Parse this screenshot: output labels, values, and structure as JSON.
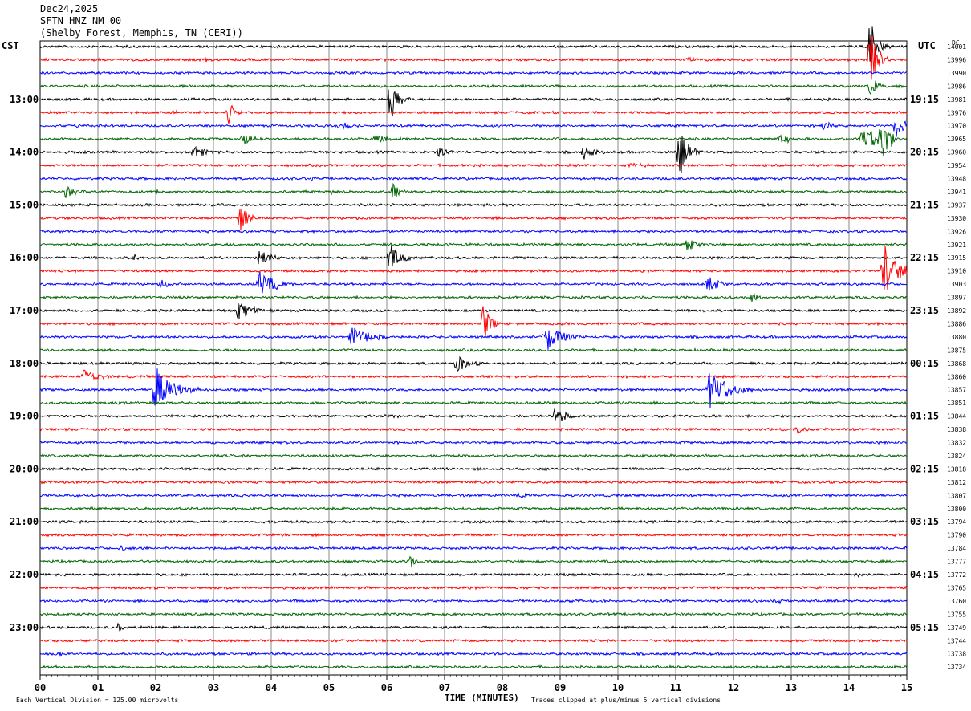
{
  "header": {
    "date": "Dec24,2025",
    "station": "SFTN HNZ NM 00",
    "location": "(Shelby Forest, Memphis, TN (CERI))"
  },
  "left_zone_label": "CST",
  "right_zone_label": "UTC",
  "count_header": "DC",
  "chart_data": {
    "type": "line",
    "title": "SFTN HNZ NM 00",
    "xlabel": "TIME (MINUTES)",
    "xlim": [
      0,
      15
    ],
    "x_ticks": [
      "00",
      "01",
      "02",
      "03",
      "04",
      "05",
      "06",
      "07",
      "08",
      "09",
      "10",
      "11",
      "12",
      "13",
      "14",
      "15"
    ],
    "trace_colors": [
      "#000000",
      "#ff0000",
      "#0000ff",
      "#006400"
    ],
    "traces_per_hour": 4,
    "trace_count": 48,
    "left_hour_labels": [
      "13:00",
      "14:00",
      "15:00",
      "16:00",
      "17:00",
      "18:00",
      "19:00",
      "20:00",
      "21:00",
      "22:00",
      "23:00"
    ],
    "right_hour_labels": [
      "19:15",
      "20:15",
      "21:15",
      "22:15",
      "23:15",
      "00:15",
      "01:15",
      "02:15",
      "03:15",
      "04:15",
      "05:15"
    ],
    "first_labeled_trace": 4,
    "dc_offsets": [
      "14001",
      "13996",
      "13990",
      "13986",
      "13981",
      "13976",
      "13970",
      "13965",
      "13960",
      "13954",
      "13948",
      "13941",
      "13937",
      "13930",
      "13926",
      "13921",
      "13915",
      "13910",
      "13903",
      "13897",
      "13892",
      "13886",
      "13880",
      "13875",
      "13868",
      "13860",
      "13857",
      "13851",
      "13844",
      "13838",
      "13832",
      "13824",
      "13818",
      "13812",
      "13807",
      "13800",
      "13794",
      "13790",
      "13784",
      "13777",
      "13772",
      "13765",
      "13760",
      "13755",
      "13749",
      "13744",
      "13738",
      "13734"
    ],
    "events": [
      {
        "trace": 0,
        "minute": 14.35,
        "amp": 40,
        "dur": 0.12
      },
      {
        "trace": 1,
        "minute": 2.85,
        "amp": 4,
        "dur": 0.1
      },
      {
        "trace": 1,
        "minute": 11.2,
        "amp": 6,
        "dur": 0.08
      },
      {
        "trace": 1,
        "minute": 14.35,
        "amp": 48,
        "dur": 0.12
      },
      {
        "trace": 3,
        "minute": 14.35,
        "amp": 12,
        "dur": 0.15
      },
      {
        "trace": 4,
        "minute": 6.05,
        "amp": 36,
        "dur": 0.12
      },
      {
        "trace": 5,
        "minute": 2.3,
        "amp": 3,
        "dur": 0.08
      },
      {
        "trace": 5,
        "minute": 3.25,
        "amp": 16,
        "dur": 0.1
      },
      {
        "trace": 6,
        "minute": 0.6,
        "amp": 3,
        "dur": 0.1
      },
      {
        "trace": 6,
        "minute": 5.2,
        "amp": 4,
        "dur": 0.2
      },
      {
        "trace": 6,
        "minute": 13.55,
        "amp": 8,
        "dur": 0.12
      },
      {
        "trace": 6,
        "minute": 14.8,
        "amp": 14,
        "dur": 0.25
      },
      {
        "trace": 7,
        "minute": 3.5,
        "amp": 8,
        "dur": 0.15
      },
      {
        "trace": 7,
        "minute": 5.8,
        "amp": 8,
        "dur": 0.15
      },
      {
        "trace": 7,
        "minute": 12.8,
        "amp": 6,
        "dur": 0.2
      },
      {
        "trace": 7,
        "minute": 14.25,
        "amp": 14,
        "dur": 0.35
      },
      {
        "trace": 7,
        "minute": 14.55,
        "amp": 30,
        "dur": 0.15
      },
      {
        "trace": 8,
        "minute": 2.65,
        "amp": 9,
        "dur": 0.2
      },
      {
        "trace": 8,
        "minute": 6.9,
        "amp": 7,
        "dur": 0.15
      },
      {
        "trace": 8,
        "minute": 9.4,
        "amp": 12,
        "dur": 0.15
      },
      {
        "trace": 8,
        "minute": 11.05,
        "amp": 40,
        "dur": 0.12
      },
      {
        "trace": 9,
        "minute": 10.2,
        "amp": 3,
        "dur": 0.3
      },
      {
        "trace": 10,
        "minute": 4.7,
        "amp": 6,
        "dur": 0.06
      },
      {
        "trace": 11,
        "minute": 0.45,
        "amp": 9,
        "dur": 0.18
      },
      {
        "trace": 11,
        "minute": 2.0,
        "amp": 4,
        "dur": 0.1
      },
      {
        "trace": 11,
        "minute": 5.05,
        "amp": 4,
        "dur": 0.1
      },
      {
        "trace": 11,
        "minute": 6.1,
        "amp": 12,
        "dur": 0.1
      },
      {
        "trace": 13,
        "minute": 3.45,
        "amp": 18,
        "dur": 0.15
      },
      {
        "trace": 15,
        "minute": 11.2,
        "amp": 14,
        "dur": 0.12
      },
      {
        "trace": 16,
        "minute": 1.6,
        "amp": 7,
        "dur": 0.08
      },
      {
        "trace": 16,
        "minute": 3.8,
        "amp": 14,
        "dur": 0.15
      },
      {
        "trace": 16,
        "minute": 6.05,
        "amp": 22,
        "dur": 0.15
      },
      {
        "trace": 17,
        "minute": 14.6,
        "amp": 36,
        "dur": 0.2
      },
      {
        "trace": 18,
        "minute": 2.1,
        "amp": 8,
        "dur": 0.12
      },
      {
        "trace": 18,
        "minute": 3.8,
        "amp": 20,
        "dur": 0.2
      },
      {
        "trace": 18,
        "minute": 4.1,
        "amp": 4,
        "dur": 0.1
      },
      {
        "trace": 18,
        "minute": 11.55,
        "amp": 10,
        "dur": 0.2
      },
      {
        "trace": 19,
        "minute": 12.3,
        "amp": 8,
        "dur": 0.1
      },
      {
        "trace": 20,
        "minute": 3.4,
        "amp": 16,
        "dur": 0.2
      },
      {
        "trace": 21,
        "minute": 7.65,
        "amp": 36,
        "dur": 0.1
      },
      {
        "trace": 22,
        "minute": 5.4,
        "amp": 14,
        "dur": 0.25
      },
      {
        "trace": 22,
        "minute": 8.75,
        "amp": 20,
        "dur": 0.25
      },
      {
        "trace": 24,
        "minute": 7.2,
        "amp": 12,
        "dur": 0.2
      },
      {
        "trace": 25,
        "minute": 0.75,
        "amp": 10,
        "dur": 0.2
      },
      {
        "trace": 26,
        "minute": 2.0,
        "amp": 34,
        "dur": 0.25
      },
      {
        "trace": 26,
        "minute": 11.6,
        "amp": 24,
        "dur": 0.3
      },
      {
        "trace": 28,
        "minute": 5.95,
        "amp": 3,
        "dur": 0.1
      },
      {
        "trace": 28,
        "minute": 8.9,
        "amp": 12,
        "dur": 0.15
      },
      {
        "trace": 29,
        "minute": 13.1,
        "amp": 5,
        "dur": 0.15
      },
      {
        "trace": 33,
        "minute": 7.65,
        "amp": 3,
        "dur": 0.1
      },
      {
        "trace": 34,
        "minute": 8.3,
        "amp": 4,
        "dur": 0.15
      },
      {
        "trace": 38,
        "minute": 1.4,
        "amp": 3,
        "dur": 0.3
      },
      {
        "trace": 39,
        "minute": 6.4,
        "amp": 16,
        "dur": 0.05
      },
      {
        "trace": 40,
        "minute": 14.1,
        "amp": 6,
        "dur": 0.06
      },
      {
        "trace": 42,
        "minute": 12.7,
        "amp": 3,
        "dur": 0.2
      },
      {
        "trace": 44,
        "minute": 1.35,
        "amp": 8,
        "dur": 0.06
      },
      {
        "trace": 46,
        "minute": 0.3,
        "amp": 3,
        "dur": 0.15
      }
    ]
  },
  "footer": {
    "scale_note": "Each Vertical Division =  125.00 microvolts",
    "clip_note": "Traces clipped at plus/minus 5 vertical divisions"
  }
}
